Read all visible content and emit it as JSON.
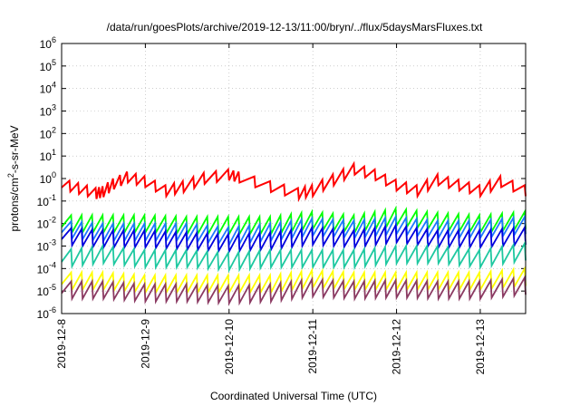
{
  "chart_data": {
    "type": "line",
    "title": "/data/run/goesPlots/archive/2019-12-13/11:00/bryn/../flux/5daysMarsFluxes.txt",
    "xlabel": "Coordinated Universal Time (UTC)",
    "ylabel": "protons/cm²-s-sr-MeV",
    "y_scale": "log",
    "ylim": [
      1e-06,
      1000000.0
    ],
    "xlim": [
      "2019-12-08T00:00",
      "2019-12-13T13:00"
    ],
    "grid": true,
    "legend": "none",
    "x_ticks": [
      "2019-12-8",
      "2019-12-9",
      "2019-12-10",
      "2019-12-11",
      "2019-12-12",
      "2019-12-13"
    ],
    "y_ticks": [
      {
        "base": "10",
        "exp": "-6"
      },
      {
        "base": "10",
        "exp": "-5"
      },
      {
        "base": "10",
        "exp": "-4"
      },
      {
        "base": "10",
        "exp": "-3"
      },
      {
        "base": "10",
        "exp": "-2"
      },
      {
        "base": "10",
        "exp": "-1"
      },
      {
        "base": "10",
        "exp": "0"
      },
      {
        "base": "10",
        "exp": "1"
      },
      {
        "base": "10",
        "exp": "2"
      },
      {
        "base": "10",
        "exp": "3"
      },
      {
        "base": "10",
        "exp": "4"
      },
      {
        "base": "10",
        "exp": "5"
      },
      {
        "base": "10",
        "exp": "6"
      }
    ],
    "series": [
      {
        "color": "#ff0000",
        "x": [
          "2019-12-08T00:00",
          "2019-12-08T05:00",
          "2019-12-08T10:00",
          "2019-12-08T12:00",
          "2019-12-08T15:00",
          "2019-12-08T19:00",
          "2019-12-09T00:00",
          "2019-12-09T06:00",
          "2019-12-09T11:00",
          "2019-12-09T17:00",
          "2019-12-10T00:00",
          "2019-12-10T03:00",
          "2019-12-10T12:00",
          "2019-12-10T20:00",
          "2019-12-11T00:00",
          "2019-12-11T06:00",
          "2019-12-11T12:00",
          "2019-12-11T18:00",
          "2019-12-12T00:00",
          "2019-12-12T06:00",
          "2019-12-12T12:00",
          "2019-12-12T18:00",
          "2019-12-13T00:00",
          "2019-12-13T06:00",
          "2019-12-13T13:00"
        ],
        "y": [
          0.4,
          0.25,
          0.15,
          0.18,
          0.4,
          0.8,
          0.5,
          0.2,
          0.3,
          0.7,
          1.0,
          0.8,
          0.3,
          0.15,
          0.2,
          0.6,
          1.8,
          1.0,
          0.35,
          0.2,
          0.6,
          0.35,
          0.2,
          0.5,
          0.2
        ]
      },
      {
        "color": "#00ff00",
        "x": [
          "2019-12-08T00:00",
          "2019-12-08T12:00",
          "2019-12-09T00:00",
          "2019-12-09T12:00",
          "2019-12-10T00:00",
          "2019-12-10T12:00",
          "2019-12-11T00:00",
          "2019-12-11T12:00",
          "2019-12-12T00:00",
          "2019-12-12T12:00",
          "2019-12-13T00:00",
          "2019-12-13T13:00"
        ],
        "y": [
          0.007,
          0.007,
          0.007,
          0.006,
          0.006,
          0.006,
          0.01,
          0.007,
          0.014,
          0.009,
          0.007,
          0.01
        ]
      },
      {
        "color": "#1e78ff",
        "x": [
          "2019-12-08T00:00",
          "2019-12-08T12:00",
          "2019-12-09T00:00",
          "2019-12-09T12:00",
          "2019-12-10T00:00",
          "2019-12-10T12:00",
          "2019-12-11T00:00",
          "2019-12-11T12:00",
          "2019-12-12T00:00",
          "2019-12-12T12:00",
          "2019-12-13T00:00",
          "2019-12-13T13:00"
        ],
        "y": [
          0.004,
          0.003,
          0.003,
          0.003,
          0.002,
          0.003,
          0.005,
          0.004,
          0.006,
          0.004,
          0.004,
          0.006
        ]
      },
      {
        "color": "#0000dd",
        "x": [
          "2019-12-08T00:00",
          "2019-12-08T12:00",
          "2019-12-09T00:00",
          "2019-12-09T12:00",
          "2019-12-10T00:00",
          "2019-12-10T12:00",
          "2019-12-11T00:00",
          "2019-12-11T12:00",
          "2019-12-12T00:00",
          "2019-12-12T12:00",
          "2019-12-13T00:00",
          "2019-12-13T13:00"
        ],
        "y": [
          0.002,
          0.0015,
          0.0015,
          0.0012,
          0.001,
          0.0012,
          0.002,
          0.0015,
          0.0025,
          0.0015,
          0.0015,
          0.002
        ]
      },
      {
        "color": "#1ec8a0",
        "x": [
          "2019-12-08T00:00",
          "2019-12-08T12:00",
          "2019-12-09T00:00",
          "2019-12-09T12:00",
          "2019-12-10T00:00",
          "2019-12-10T12:00",
          "2019-12-11T00:00",
          "2019-12-11T12:00",
          "2019-12-12T00:00",
          "2019-12-12T12:00",
          "2019-12-13T00:00",
          "2019-12-13T13:00"
        ],
        "y": [
          0.0002,
          0.0003,
          0.0002,
          0.0002,
          0.00015,
          0.0002,
          0.0002,
          0.0002,
          0.0003,
          0.0003,
          0.0002,
          0.0004
        ]
      },
      {
        "color": "#ffff00",
        "x": [
          "2019-12-08T00:00",
          "2019-12-08T12:00",
          "2019-12-09T00:00",
          "2019-12-09T12:00",
          "2019-12-10T00:00",
          "2019-12-10T12:00",
          "2019-12-11T00:00",
          "2019-12-11T12:00",
          "2019-12-12T00:00",
          "2019-12-12T12:00",
          "2019-12-13T00:00",
          "2019-12-13T13:00"
        ],
        "y": [
          2e-05,
          2e-05,
          1.5e-05,
          1.5e-05,
          1.5e-05,
          1.5e-05,
          2.5e-05,
          2e-05,
          2e-05,
          2e-05,
          2e-05,
          3e-05
        ]
      },
      {
        "color": "#8b3a62",
        "x": [
          "2019-12-08T00:00",
          "2019-12-08T12:00",
          "2019-12-09T00:00",
          "2019-12-09T12:00",
          "2019-12-10T00:00",
          "2019-12-10T12:00",
          "2019-12-11T00:00",
          "2019-12-11T12:00",
          "2019-12-12T00:00",
          "2019-12-12T12:00",
          "2019-12-13T00:00",
          "2019-12-13T13:00"
        ],
        "y": [
          8e-06,
          8e-06,
          6e-06,
          6e-06,
          5e-06,
          6e-06,
          1e-05,
          8e-06,
          9e-06,
          8e-06,
          8e-06,
          1.2e-05
        ]
      }
    ]
  }
}
